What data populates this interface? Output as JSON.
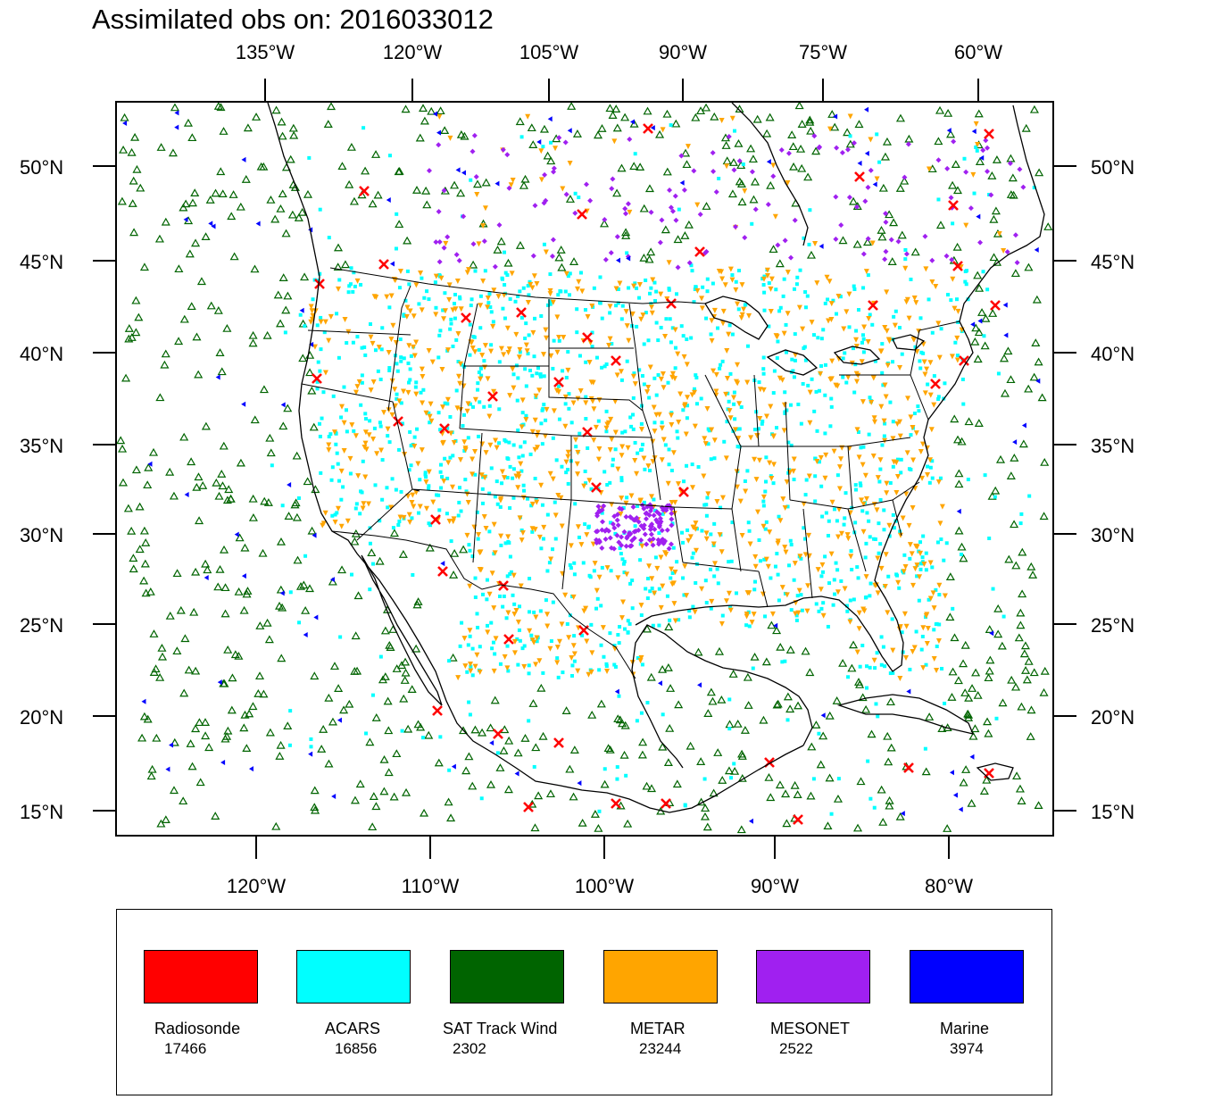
{
  "title": "Assimilated obs on: 2016033012",
  "axes": {
    "top_lon_labels": [
      "135°W",
      "120°W",
      "105°W",
      "90°W",
      "75°W",
      "60°W"
    ],
    "bottom_lon_labels": [
      "120°W",
      "110°W",
      "100°W",
      "90°W",
      "80°W"
    ],
    "lat_labels": [
      "50°N",
      "45°N",
      "40°N",
      "35°N",
      "30°N",
      "25°N",
      "20°N",
      "15°N"
    ]
  },
  "legend": {
    "items": [
      {
        "label": "Radiosonde",
        "count": "17466",
        "color": "#ff0000",
        "symbol": "x-icon"
      },
      {
        "label": "ACARS",
        "count": "16856",
        "color": "#00ffff",
        "symbol": "square-dot-icon"
      },
      {
        "label": "SAT Track Wind",
        "count": "2302",
        "color": "#006400",
        "symbol": "triangle-up-icon"
      },
      {
        "label": "METAR",
        "count": "23244",
        "color": "#ffa500",
        "symbol": "triangle-down-icon"
      },
      {
        "label": "MESONET",
        "count": "2522",
        "color": "#a020f0",
        "symbol": "diamond-icon"
      },
      {
        "label": "Marine",
        "count": "3974",
        "color": "#0000ff",
        "symbol": "triangle-left-icon"
      }
    ]
  }
}
